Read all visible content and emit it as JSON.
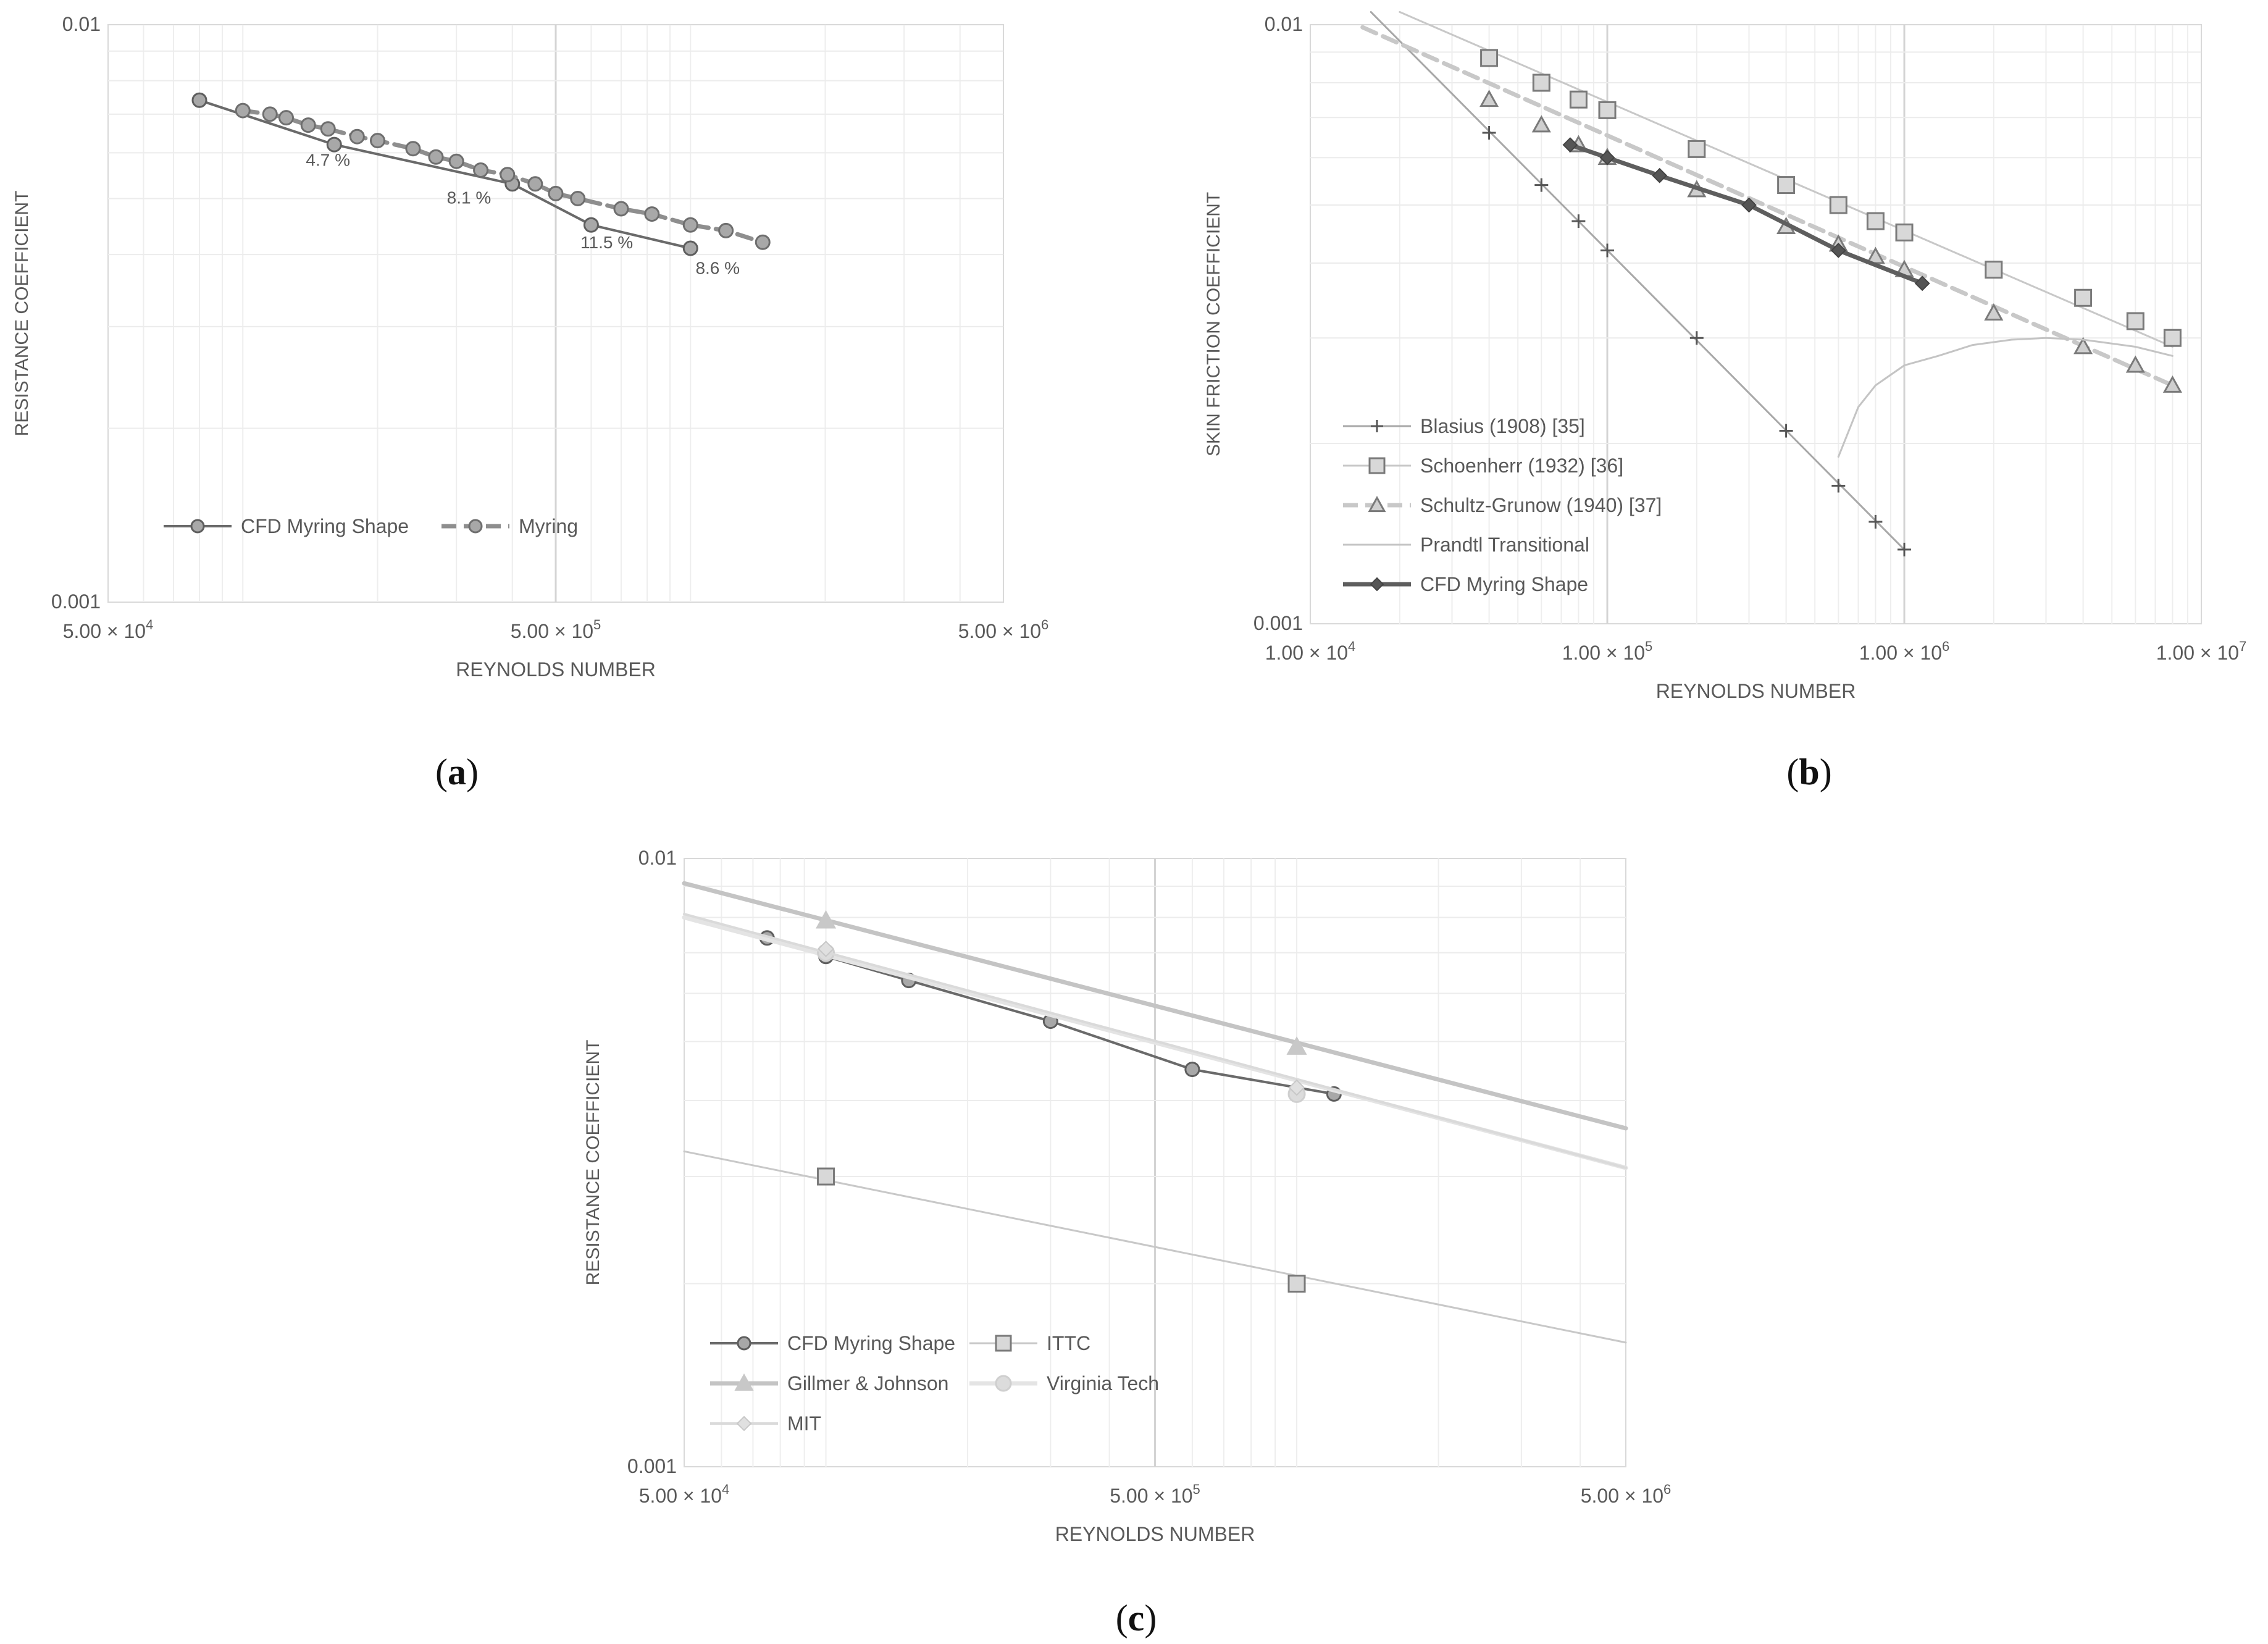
{
  "chart_data": [
    {
      "id": "a",
      "type": "line",
      "caption_letter": "a",
      "xlabel": "REYNOLDS NUMBER",
      "ylabel": "RESISTANCE COEFFICIENT",
      "xscale": "log",
      "yscale": "log",
      "xlim": [
        50000,
        5000000
      ],
      "ylim": [
        0.001,
        0.01
      ],
      "xticks": [
        {
          "v": 50000,
          "m": "5.00 × 10",
          "e": "4"
        },
        {
          "v": 500000,
          "m": "5.00 × 10",
          "e": "5"
        },
        {
          "v": 5000000,
          "m": "5.00 × 10",
          "e": "6"
        }
      ],
      "yticks": [
        {
          "v": 0.01,
          "label": "0.01"
        },
        {
          "v": 0.001,
          "label": "0.001"
        }
      ],
      "grid": true,
      "legend_position": "lower-left",
      "series": [
        {
          "name": "CFD Myring Shape",
          "style": "solid-circle",
          "x": [
            80000,
            160000,
            400000,
            600000,
            1000000
          ],
          "y": [
            0.0074,
            0.0062,
            0.0053,
            0.0045,
            0.0041
          ]
        },
        {
          "name": "Myring",
          "style": "dashed-circle",
          "x": [
            100000,
            115000,
            125000,
            140000,
            155000,
            180000,
            200000,
            240000,
            270000,
            300000,
            340000,
            390000,
            450000,
            500000,
            560000,
            700000,
            820000,
            1000000,
            1200000,
            1450000
          ],
          "y": [
            0.0071,
            0.007,
            0.0069,
            0.0067,
            0.0066,
            0.0064,
            0.0063,
            0.0061,
            0.0059,
            0.0058,
            0.0056,
            0.0055,
            0.0053,
            0.0051,
            0.005,
            0.0048,
            0.0047,
            0.0045,
            0.0044,
            0.0042
          ]
        }
      ],
      "annotations": [
        {
          "text": "4.7 %",
          "x": 155000,
          "y": 0.0057
        },
        {
          "text": "8.1 %",
          "x": 320000,
          "y": 0.0049
        },
        {
          "text": "11.5 %",
          "x": 650000,
          "y": 0.0041
        },
        {
          "text": "8.6 %",
          "x": 1150000,
          "y": 0.0037
        }
      ]
    },
    {
      "id": "b",
      "type": "line",
      "caption_letter": "b",
      "xlabel": "REYNOLDS NUMBER",
      "ylabel": "SKIN FRICTION COEFFICIENT",
      "xscale": "log",
      "yscale": "log",
      "xlim": [
        10000,
        10000000
      ],
      "ylim": [
        0.001,
        0.01
      ],
      "xticks": [
        {
          "v": 10000,
          "m": "1.00 × 10",
          "e": "4"
        },
        {
          "v": 100000,
          "m": "1.00 × 10",
          "e": "5"
        },
        {
          "v": 1000000,
          "m": "1.00 × 10",
          "e": "6"
        },
        {
          "v": 10000000,
          "m": "1.00 × 10",
          "e": "7"
        }
      ],
      "yticks": [
        {
          "v": 0.01,
          "label": "0.01"
        },
        {
          "v": 0.001,
          "label": "0.001"
        }
      ],
      "grid": true,
      "legend_position": "lower-left",
      "series": [
        {
          "name": "Blasius (1908) [35]",
          "style": "plus",
          "x": [
            40000,
            60000,
            80000,
            100000,
            200000,
            400000,
            600000,
            800000,
            1000000
          ],
          "y": [
            0.0066,
            0.0054,
            0.0047,
            0.0042,
            0.003,
            0.0021,
            0.0017,
            0.00148,
            0.00133
          ],
          "line_x": [
            16000,
            1000000
          ],
          "line_y": [
            0.0105,
            0.00133
          ]
        },
        {
          "name": "Schoenherr (1932) [36]",
          "style": "square",
          "x": [
            40000,
            60000,
            80000,
            100000,
            200000,
            400000,
            600000,
            800000,
            1000000,
            2000000,
            4000000,
            6000000,
            8000000
          ],
          "y": [
            0.0088,
            0.008,
            0.0075,
            0.0072,
            0.0062,
            0.0054,
            0.005,
            0.0047,
            0.0045,
            0.0039,
            0.0035,
            0.0032,
            0.003
          ],
          "line_x": [
            20000,
            8000000
          ],
          "line_y": [
            0.0105,
            0.0029
          ]
        },
        {
          "name": "Schultz-Grunow (1940) [37]",
          "style": "dashed-triangle",
          "x": [
            40000,
            60000,
            80000,
            100000,
            200000,
            400000,
            600000,
            800000,
            1000000,
            2000000,
            4000000,
            6000000,
            8000000
          ],
          "y": [
            0.0075,
            0.0068,
            0.0063,
            0.006,
            0.0053,
            0.0046,
            0.0043,
            0.0041,
            0.0039,
            0.0033,
            0.0029,
            0.0027,
            0.0025
          ],
          "line_x": [
            15000,
            8000000
          ],
          "line_y": [
            0.0099,
            0.0025
          ]
        },
        {
          "name": "Prandtl Transitional",
          "style": "thin-line",
          "x": [
            600000,
            700000,
            800000,
            1000000,
            1300000,
            1700000,
            2300000,
            3000000,
            4000000,
            6000000,
            8000000
          ],
          "y": [
            0.0019,
            0.0023,
            0.0025,
            0.0027,
            0.0028,
            0.00292,
            0.00298,
            0.003,
            0.00298,
            0.0029,
            0.0028
          ]
        },
        {
          "name": "CFD Myring Shape",
          "style": "bold-diamond",
          "x": [
            75000,
            100000,
            150000,
            300000,
            600000,
            1150000
          ],
          "y": [
            0.0063,
            0.006,
            0.0056,
            0.005,
            0.0042,
            0.0037
          ]
        }
      ]
    },
    {
      "id": "c",
      "type": "line",
      "caption_letter": "c",
      "xlabel": "REYNOLDS NUMBER",
      "ylabel": "RESISTANCE COEFFICIENT",
      "xscale": "log",
      "yscale": "log",
      "xlim": [
        50000,
        5000000
      ],
      "ylim": [
        0.001,
        0.01
      ],
      "xticks": [
        {
          "v": 50000,
          "m": "5.00 × 10",
          "e": "4"
        },
        {
          "v": 500000,
          "m": "5.00 × 10",
          "e": "5"
        },
        {
          "v": 5000000,
          "m": "5.00 × 10",
          "e": "6"
        }
      ],
      "yticks": [
        {
          "v": 0.01,
          "label": "0.01"
        },
        {
          "v": 0.001,
          "label": "0.001"
        }
      ],
      "grid": true,
      "legend_position": "lower-left",
      "series": [
        {
          "name": "CFD Myring Shape",
          "style": "solid-circle",
          "x": [
            75000,
            100000,
            150000,
            300000,
            600000,
            1200000
          ],
          "y": [
            0.0074,
            0.0069,
            0.0063,
            0.0054,
            0.0045,
            0.0041
          ]
        },
        {
          "name": "ITTC",
          "style": "square",
          "x": [
            100000,
            1000000
          ],
          "y": [
            0.003,
            0.002
          ],
          "line_x": [
            50000,
            5000000
          ],
          "line_y": [
            0.0033,
            0.0016
          ]
        },
        {
          "name": "Gillmer & Johnson",
          "style": "triangle",
          "x": [
            100000,
            1000000
          ],
          "y": [
            0.0079,
            0.0049
          ],
          "line_x": [
            50000,
            5000000
          ],
          "line_y": [
            0.0091,
            0.0036
          ]
        },
        {
          "name": "Virginia Tech",
          "style": "circle",
          "x": [
            100000,
            1000000
          ],
          "y": [
            0.007,
            0.0041
          ],
          "line_x": [
            50000,
            5000000
          ],
          "line_y": [
            0.008,
            0.0031
          ]
        },
        {
          "name": "MIT",
          "style": "diamond",
          "x": [
            100000,
            1000000
          ],
          "y": [
            0.0071,
            0.0042
          ],
          "line_x": [
            50000,
            5000000
          ],
          "line_y": [
            0.0081,
            0.0031
          ]
        }
      ]
    }
  ]
}
